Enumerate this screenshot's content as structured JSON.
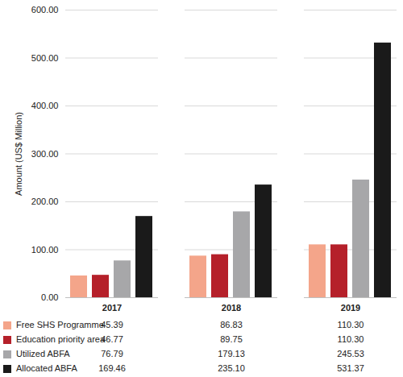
{
  "chart_data": {
    "type": "bar",
    "y_label": "Amount (US$ Million)",
    "categories": [
      "2017",
      "2018",
      "2019"
    ],
    "series": [
      {
        "name": "Free SHS Programme",
        "color": "#f4a58a",
        "values": [
          45.39,
          86.83,
          110.3
        ],
        "value_labels": [
          "45.39",
          "86.83",
          "110.30"
        ]
      },
      {
        "name": "Education priority area",
        "color": "#b5202a",
        "values": [
          46.77,
          89.75,
          110.3
        ],
        "value_labels": [
          "46.77",
          "89.75",
          "110.30"
        ]
      },
      {
        "name": "Utilized ABFA",
        "color": "#a7a7a9",
        "values": [
          76.79,
          179.13,
          245.53
        ],
        "value_labels": [
          "76.79",
          "179.13",
          "245.53"
        ]
      },
      {
        "name": "Allocated ABFA",
        "color": "#1a1a1a",
        "values": [
          169.46,
          235.1,
          531.37
        ],
        "value_labels": [
          "169.46",
          "235.10",
          "531.37"
        ]
      }
    ],
    "ylim": [
      0,
      600
    ],
    "yticks": [
      {
        "value": 0,
        "label": "0.00"
      },
      {
        "value": 100,
        "label": "100.00"
      },
      {
        "value": 200,
        "label": "200.00"
      },
      {
        "value": 300,
        "label": "300.00"
      },
      {
        "value": 400,
        "label": "400.00"
      },
      {
        "value": 500,
        "label": "500.00"
      },
      {
        "value": 600,
        "label": "600.00"
      }
    ],
    "grid": true
  }
}
